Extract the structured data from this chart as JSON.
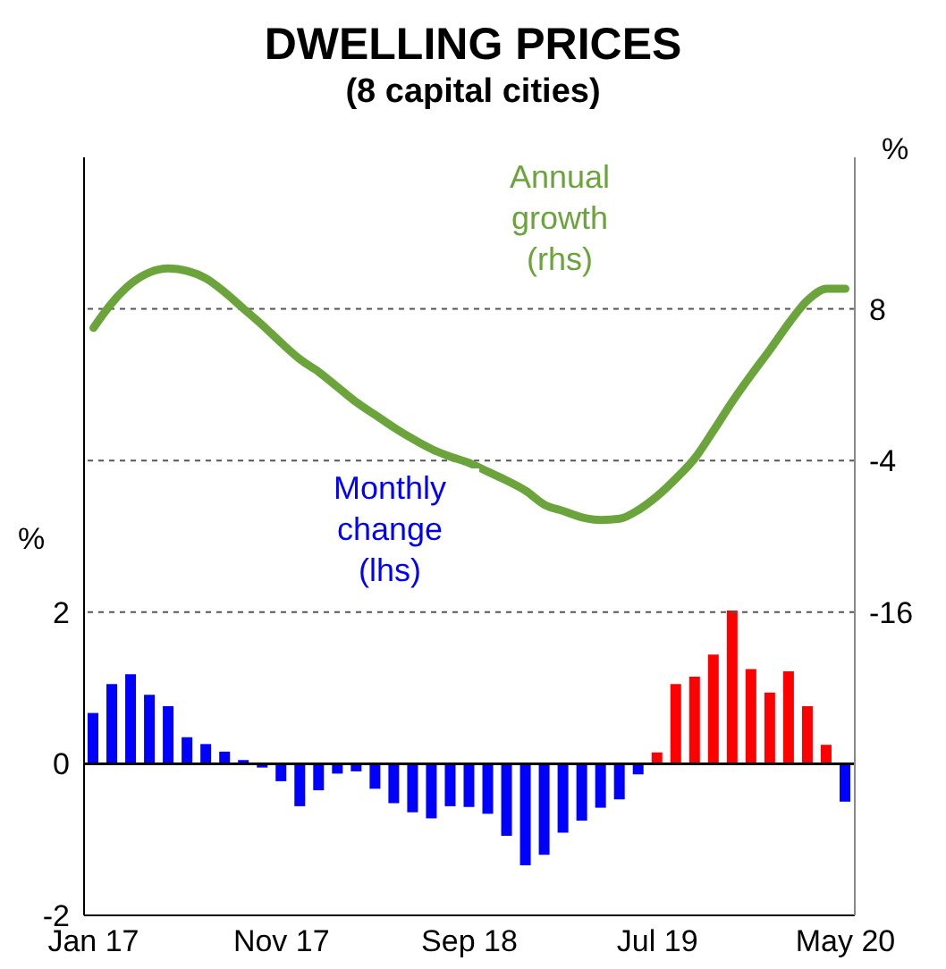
{
  "chart_data": {
    "type": "bar",
    "title": "DWELLING PRICES",
    "subtitle": "(8 capital cities)",
    "ylabel": "%",
    "y2label": "%",
    "categories": [
      "Jan 17",
      null,
      null,
      null,
      null,
      null,
      null,
      null,
      null,
      null,
      "Nov 17",
      null,
      null,
      null,
      null,
      null,
      null,
      null,
      null,
      null,
      "Sep 18",
      null,
      null,
      null,
      null,
      null,
      null,
      null,
      null,
      null,
      "Jul 19",
      null,
      null,
      null,
      null,
      null,
      null,
      null,
      null,
      null,
      "May 20"
    ],
    "series": [
      {
        "name": "Monthly change (lhs)",
        "color": "#0000ff",
        "colors": [
          "#0000ff",
          "#0000ff",
          "#0000ff",
          "#0000ff",
          "#0000ff",
          "#0000ff",
          "#0000ff",
          "#0000ff",
          "#0000ff",
          "#0000ff",
          "#0000ff",
          "#0000ff",
          "#0000ff",
          "#0000ff",
          "#0000ff",
          "#0000ff",
          "#0000ff",
          "#0000ff",
          "#0000ff",
          "#0000ff",
          "#0000ff",
          "#0000ff",
          "#0000ff",
          "#0000ff",
          "#0000ff",
          "#0000ff",
          "#0000ff",
          "#0000ff",
          "#0000ff",
          "#0000ff",
          "#ff0000",
          "#ff0000",
          "#ff0000",
          "#ff0000",
          "#ff0000",
          "#ff0000",
          "#ff0000",
          "#ff0000",
          "#ff0000",
          "#ff0000",
          "#0000ff"
        ],
        "values": [
          0.67,
          1.05,
          1.18,
          0.91,
          0.76,
          0.35,
          0.26,
          0.16,
          0.05,
          -0.05,
          -0.23,
          -0.56,
          -0.35,
          -0.13,
          -0.1,
          -0.33,
          -0.52,
          -0.64,
          -0.72,
          -0.56,
          -0.57,
          -0.66,
          -0.95,
          -1.34,
          -1.2,
          -0.91,
          -0.75,
          -0.58,
          -0.47,
          -0.14,
          0.15,
          1.05,
          1.15,
          1.44,
          2.02,
          1.25,
          0.94,
          1.22,
          0.76,
          0.25,
          -0.5
        ]
      },
      {
        "name": "Annual growth (rhs)",
        "type": "line",
        "axis": "y2",
        "color": "#6aa43a",
        "values": [
          6.5,
          8.5,
          10.0,
          10.9,
          11.2,
          11.0,
          10.4,
          9.3,
          8.0,
          6.7,
          5.3,
          4.0,
          3.0,
          1.8,
          0.6,
          -0.4,
          -1.4,
          -2.3,
          -3.1,
          -3.7,
          -4.2,
          -4.9,
          -5.6,
          -6.4,
          -7.5,
          -8.0,
          -8.5,
          -8.7,
          -8.6,
          -7.9,
          -6.8,
          -5.4,
          -3.8,
          -1.6,
          0.7,
          2.8,
          4.8,
          6.9,
          8.7,
          9.6,
          9.6
        ]
      }
    ],
    "ylim": [
      -2,
      8
    ],
    "yticks": [
      -2,
      0,
      2
    ],
    "y2lim": [
      -40,
      20
    ],
    "y2ticks": [
      8,
      -4,
      -16
    ],
    "grid": true,
    "ref_lines": [
      {
        "axis": "y",
        "value": 0,
        "color": "#000000",
        "line_style": "solid"
      }
    ]
  }
}
